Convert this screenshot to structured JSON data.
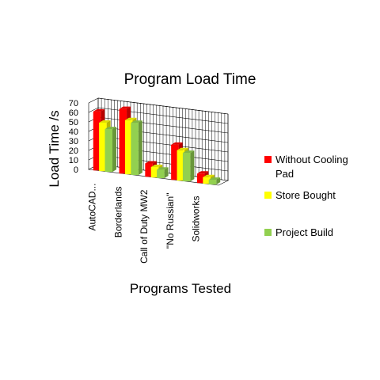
{
  "chart_data": {
    "type": "bar",
    "title": "Program Load Time",
    "xlabel": "Programs Tested",
    "ylabel": "Load Time /s",
    "ylim": [
      0,
      70
    ],
    "yticks": [
      0,
      10,
      20,
      30,
      40,
      50,
      60,
      70
    ],
    "grid": true,
    "legend_position": "right",
    "categories": [
      "AutoCAD...",
      "Borderlands",
      "Call of Duty MW2",
      "\"No Russian\"",
      "Solidworks"
    ],
    "series": [
      {
        "name": "Without Cooling Pad",
        "color": "#ff0000",
        "values": [
          62,
          68,
          14,
          37,
          10
        ]
      },
      {
        "name": "Store Bought",
        "color": "#ffff00",
        "values": [
          51,
          57,
          11,
          32,
          7
        ]
      },
      {
        "name": "Project Build",
        "color": "#92d050",
        "values": [
          45,
          55,
          9,
          30,
          5
        ]
      }
    ]
  }
}
